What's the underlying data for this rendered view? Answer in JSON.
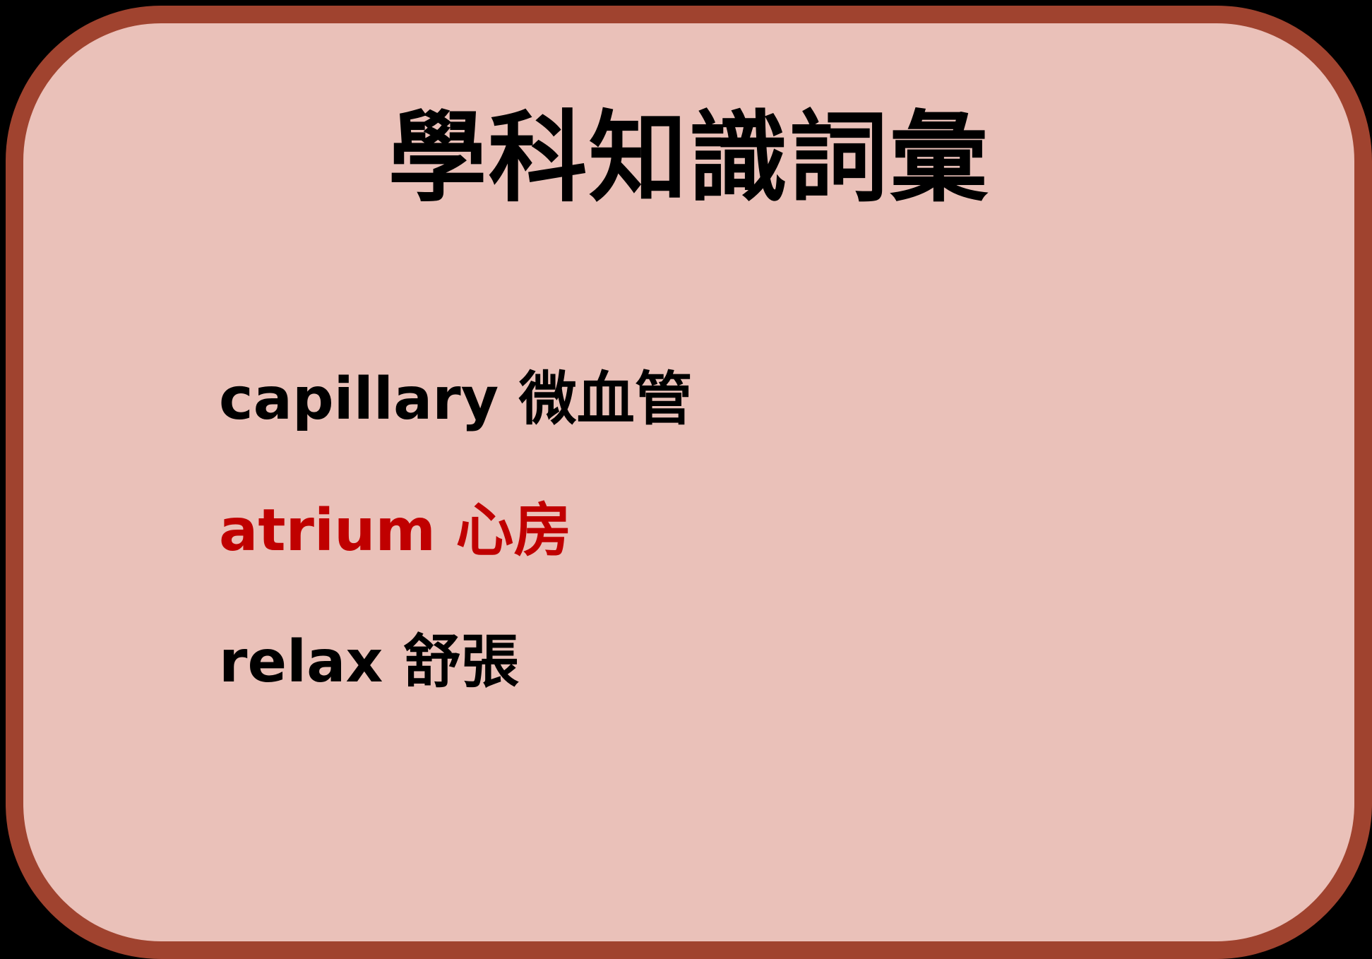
{
  "title": "學科知識詞彙",
  "colors": {
    "background": "#eac1b9",
    "border": "#a0432f",
    "highlight": "#c00000",
    "text": "#000000"
  },
  "vocabulary": [
    {
      "english": "capillary",
      "chinese": "微血管",
      "highlighted": false
    },
    {
      "english": "atrium",
      "chinese": "心房",
      "highlighted": true
    },
    {
      "english": "relax",
      "chinese": "舒張",
      "highlighted": false
    }
  ]
}
